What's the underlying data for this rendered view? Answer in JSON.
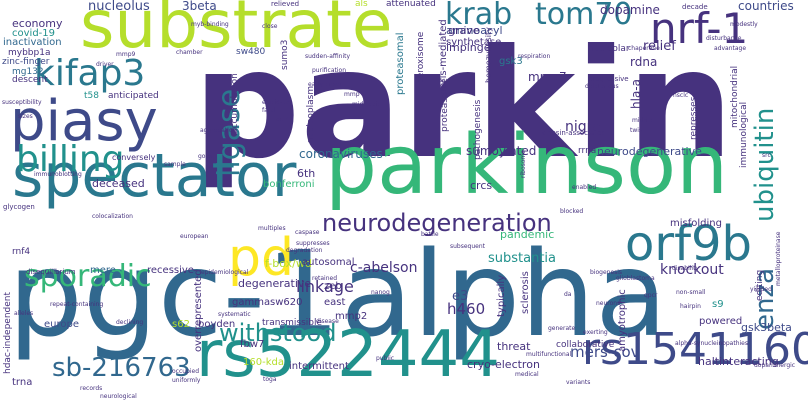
{
  "palette": {
    "dark_purple": "#46327e",
    "indigo": "#3e4a89",
    "blue": "#31688e",
    "teal_blue": "#2a788e",
    "teal": "#21918c",
    "green": "#35b779",
    "light_green": "#6ece58",
    "yellow_green": "#b5de2b",
    "yellow": "#fde725"
  },
  "words": [
    "parkin",
    "pgc-1alpha",
    "substrate",
    "parkinson",
    "spectator",
    "rs522444",
    "piasy",
    "kifap3",
    "rs1541160",
    "nrf-1",
    "orf9b",
    "enza",
    "ubiquitin",
    "billing",
    "pd",
    "neurodegeneration",
    "sporadic",
    "sb-216763",
    "withstood",
    "krab",
    "tom70",
    "ligase",
    "linkage",
    "nucleolus",
    "3beta",
    "dopamine",
    "countries",
    "substantia",
    "nigra",
    "knockout",
    "gsk3beta",
    "h460",
    "mers-cov",
    "c-abelson",
    "e3"
  ],
  "small_words": [
    "economy",
    "covid-19",
    "inactivation",
    "mybbp1a",
    "zinc-finger",
    "mg132",
    "t58",
    "anticipated",
    "sw480",
    "sumo3",
    "aminoacyl",
    "impinge",
    "gsk3",
    "mmp7",
    "rdna",
    "relief",
    "peroxisome",
    "paris-mediated",
    "proteasomal",
    "coronaviruses",
    "sumoylated",
    "neurodegenerative",
    "deceased",
    "6th",
    "bonferroni",
    "crcs",
    "f-box/wd",
    "autosomal",
    "recessive",
    "mere",
    "rnf4",
    "degenerative",
    "gamma",
    "sw620",
    "europe",
    "boyden",
    "s62",
    "fbw7",
    "transmissible",
    "threat",
    "cryo-electron",
    "halt",
    "interacting",
    "powered",
    "s9",
    "misfolding",
    "editing",
    "typically",
    "sclerosis",
    "amyotrophic",
    "collaborative",
    "pandemic",
    "zeb",
    "east",
    "mmp2",
    "overrepresented",
    "hdac-independent",
    "160-kda",
    "intermittent",
    "trna",
    "grave",
    "synthetase",
    "nucleolar",
    "homozygosity",
    "hla-a",
    "represses",
    "mitochondrial",
    "immunological",
    "accumulation",
    "nucleoplasm",
    "attenuated",
    "als",
    "relieved",
    "myb-binding",
    "mmp9",
    "driver",
    "descent",
    "decade",
    "advantage",
    "fatal",
    "elucidate",
    "oct4",
    "aggregation",
    "goas",
    "conversely",
    "glycogen",
    "disequilibrium",
    "colocalization",
    "multiples",
    "european",
    "suppresses",
    "nanog",
    "disease",
    "systematic",
    "repeat-containing",
    "alleles",
    "declining",
    "occupied",
    "uniformly",
    "records",
    "neurological",
    "toga",
    "public",
    "medical",
    "variants",
    "multifunctional",
    "neurons",
    "hairpin",
    "non-small",
    "alpha-synucleinopathies",
    "metalloproteinase",
    "disability",
    "progressive",
    "deleterious",
    "respiration",
    "twist",
    "nsclc",
    "ribosome",
    "kinesin-associated",
    "rrna",
    "enabled",
    "blocked",
    "subsequent",
    "exerting",
    "src",
    "qpcr",
    "yielded",
    "dopaminergic",
    "sudden-affinity",
    "purification",
    "early-onset",
    "mmp",
    "chamber",
    "close",
    "immunoblotting",
    "sample",
    "susceptibility",
    "sizes",
    "chaperone",
    "modestly",
    "disturbance",
    "middle",
    "midtropic",
    "epidemiological",
    "caspase",
    "degradation",
    "battle",
    "biogenesis",
    "pathogenesis",
    "proteasome",
    "retained",
    "glioblastoma",
    "da",
    "generate"
  ]
}
